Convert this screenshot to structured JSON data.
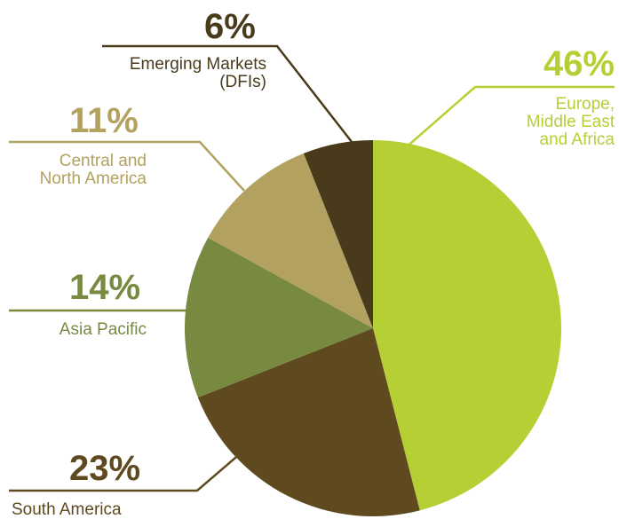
{
  "chart_data": {
    "type": "pie",
    "categories": [
      "Europe,\nMiddle East\nand Africa",
      "South America",
      "Asia Pacific",
      "Central and\nNorth America",
      "Emerging Markets\n(DFIs)"
    ],
    "values": [
      46,
      23,
      14,
      11,
      6
    ],
    "value_labels": [
      "46%",
      "23%",
      "14%",
      "11%",
      "6%"
    ],
    "colors": [
      "#b5cf35",
      "#5f4a1f",
      "#778a3f",
      "#b3a160",
      "#4a3a1c"
    ]
  }
}
